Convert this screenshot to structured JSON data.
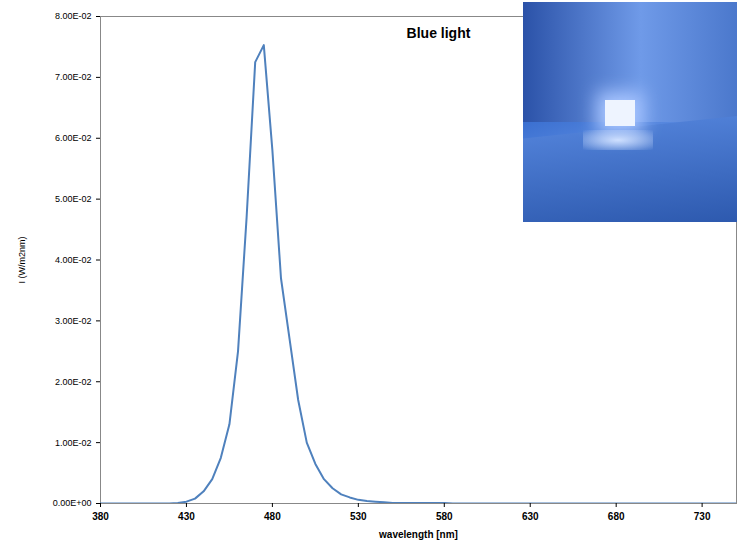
{
  "chart_data": {
    "type": "line",
    "title": "Blue light",
    "x_label": "wavelength [nm]",
    "y_label": "I (W/m2nm)",
    "color": "#4f81bd",
    "grid": false,
    "x": [
      380,
      385,
      390,
      395,
      400,
      405,
      410,
      415,
      420,
      425,
      430,
      435,
      440,
      445,
      450,
      455,
      460,
      465,
      470,
      475,
      480,
      485,
      490,
      495,
      500,
      505,
      510,
      515,
      520,
      525,
      530,
      535,
      540,
      545,
      550,
      555,
      560,
      565,
      570,
      575,
      580,
      585,
      590,
      595,
      600,
      610,
      620,
      630,
      640,
      650,
      660,
      670,
      680,
      690,
      700,
      710,
      720,
      730,
      740,
      750
    ],
    "values": [
      0,
      0,
      0,
      0,
      0,
      0,
      0,
      0,
      0,
      0.0001,
      0.0003,
      0.0008,
      0.002,
      0.004,
      0.0075,
      0.013,
      0.025,
      0.047,
      0.0725,
      0.0753,
      0.058,
      0.037,
      0.027,
      0.017,
      0.01,
      0.0065,
      0.004,
      0.0025,
      0.0015,
      0.001,
      0.0006,
      0.0004,
      0.0003,
      0.0002,
      0.0001,
      0.0001,
      0.0001,
      0.0001,
      0.0001,
      0.0001,
      0.0001,
      0,
      0,
      0,
      0,
      0,
      0,
      0,
      0,
      0,
      0,
      0,
      0,
      0,
      0,
      0,
      0,
      0,
      0,
      0
    ],
    "xlim": [
      380,
      750
    ],
    "xticks": [
      380,
      430,
      480,
      530,
      580,
      630,
      680,
      730
    ],
    "ylim": [
      0,
      0.08
    ],
    "yticks": [
      {
        "value": 0,
        "label": "0.00E+00"
      },
      {
        "value": 0.01,
        "label": "1.00E-02"
      },
      {
        "value": 0.02,
        "label": "2.00E-02"
      },
      {
        "value": 0.03,
        "label": "3.00E-02"
      },
      {
        "value": 0.04,
        "label": "4.00E-02"
      },
      {
        "value": 0.05,
        "label": "5.00E-02"
      },
      {
        "value": 0.06,
        "label": "6.00E-02"
      },
      {
        "value": 0.07,
        "label": "7.00E-02"
      },
      {
        "value": 0.08,
        "label": "8.00E-02"
      }
    ]
  }
}
